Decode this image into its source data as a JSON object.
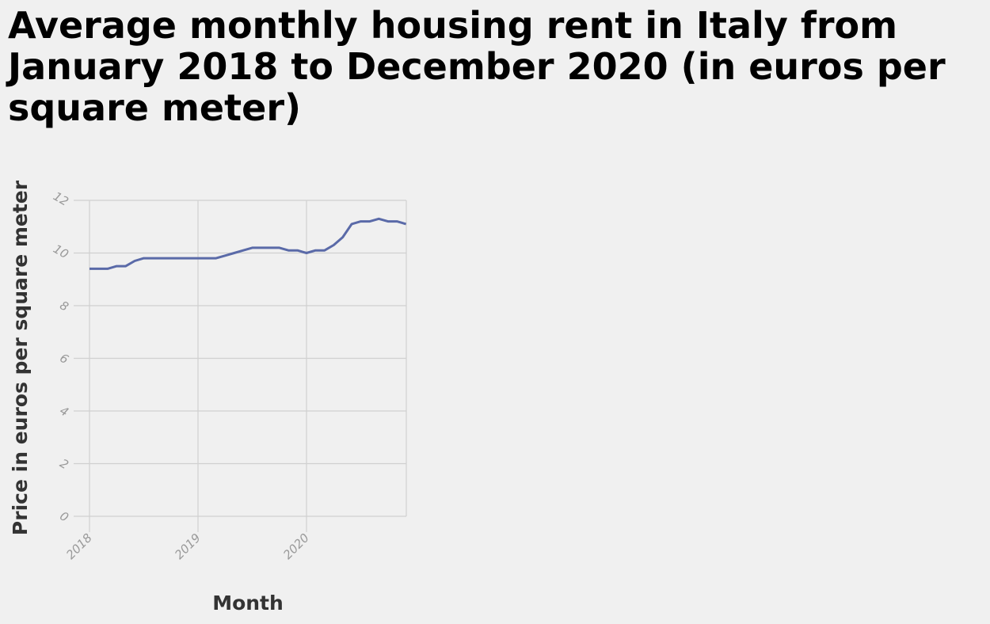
{
  "chart_data": {
    "type": "line",
    "title": "Average monthly housing rent in Italy from January 2018 to December 2020 (in euros per square meter)",
    "xlabel": "Month",
    "ylabel": "Price in euros per square meter",
    "ylim": [
      0,
      12
    ],
    "yticks": [
      "0",
      "2",
      "4",
      "6",
      "8",
      "10",
      "12"
    ],
    "xticks": [
      "2018",
      "2019",
      "2020"
    ],
    "grid": true,
    "line_color": "#5a6aa8",
    "series": [
      {
        "x": [
          "2018-01",
          "2018-02",
          "2018-03",
          "2018-04",
          "2018-05",
          "2018-06",
          "2018-07",
          "2018-08",
          "2018-09",
          "2018-10",
          "2018-11",
          "2018-12",
          "2019-01",
          "2019-02",
          "2019-03",
          "2019-04",
          "2019-05",
          "2019-06",
          "2019-07",
          "2019-08",
          "2019-09",
          "2019-10",
          "2019-11",
          "2019-12",
          "2020-01",
          "2020-02",
          "2020-03",
          "2020-04",
          "2020-05",
          "2020-06",
          "2020-07",
          "2020-08",
          "2020-09",
          "2020-10",
          "2020-11",
          "2020-12"
        ],
        "values": [
          9.4,
          9.4,
          9.4,
          9.5,
          9.5,
          9.7,
          9.8,
          9.8,
          9.8,
          9.8,
          9.8,
          9.8,
          9.8,
          9.8,
          9.8,
          9.9,
          10.0,
          10.1,
          10.2,
          10.2,
          10.2,
          10.2,
          10.1,
          10.1,
          10.0,
          10.1,
          10.1,
          10.3,
          10.6,
          11.1,
          11.2,
          11.2,
          11.3,
          11.2,
          11.2,
          11.1
        ]
      }
    ]
  }
}
